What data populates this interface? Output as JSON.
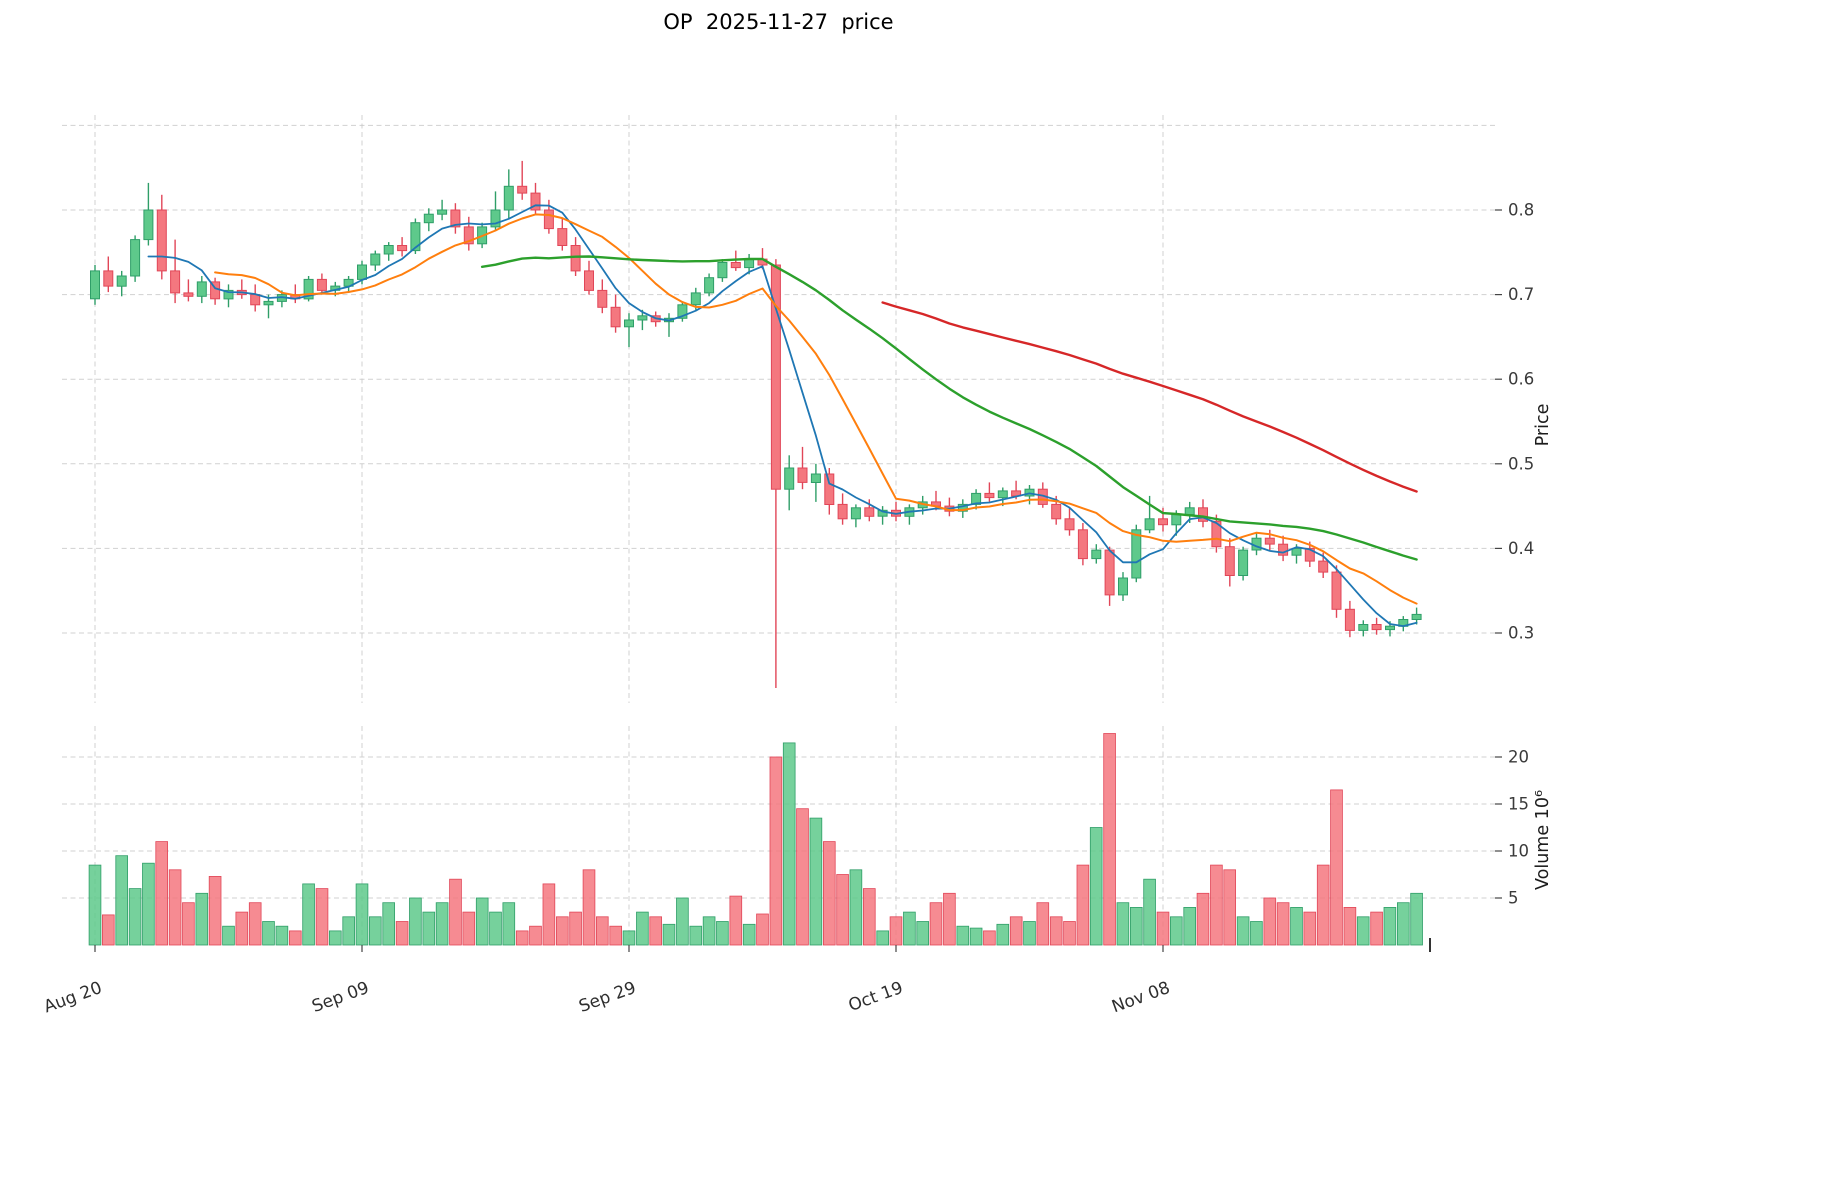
{
  "title": "OP  2025-11-27  price",
  "axes": {
    "price_label": "Price",
    "volume_label": "Volume  10⁶",
    "price_ticks": [
      0.3,
      0.4,
      0.5,
      0.6,
      0.7,
      0.8
    ],
    "price_grid": [
      0.3,
      0.4,
      0.5,
      0.6,
      0.7,
      0.8,
      0.9
    ],
    "volume_ticks": [
      5,
      10,
      15,
      20
    ],
    "x_ticks": [
      {
        "index": 0,
        "label": "Aug 20"
      },
      {
        "index": 20,
        "label": "Sep 09"
      },
      {
        "index": 40,
        "label": "Sep 29"
      },
      {
        "index": 60,
        "label": "Oct 19"
      },
      {
        "index": 80,
        "label": "Nov 08"
      }
    ]
  },
  "colors": {
    "up": "#5ec98b",
    "up_edge": "#2f9e68",
    "down": "#f4777f",
    "down_edge": "#e14658",
    "grid": "#c9c9c9"
  },
  "chart_data": {
    "type": "candlestick+volume",
    "symbol": "OP",
    "as_of_date": "2025-11-27",
    "start_date": "2025-08-20",
    "end_date": "2025-11-27",
    "freq": "daily",
    "price_ylim": [
      0.215,
      0.91
    ],
    "volume_ylim_millions": [
      0,
      23.4
    ],
    "volume_unit": "1e6",
    "x_tick_labels": [
      "Aug 20",
      "Sep 09",
      "Sep 29",
      "Oct 19",
      "Nov 08"
    ],
    "moving_averages": [
      {
        "name": "MA5",
        "window": 5,
        "color": "#1f77b4",
        "width": 1.8
      },
      {
        "name": "MA10",
        "window": 10,
        "color": "#ff7f0e",
        "width": 2.0
      },
      {
        "name": "MA30",
        "window": 30,
        "color": "#2ca02c",
        "width": 2.4
      },
      {
        "name": "MA60",
        "window": 60,
        "color": "#d62728",
        "width": 2.4
      }
    ],
    "open": [
      0.695,
      0.728,
      0.71,
      0.722,
      0.765,
      0.8,
      0.728,
      0.702,
      0.698,
      0.715,
      0.695,
      0.705,
      0.7,
      0.688,
      0.692,
      0.7,
      0.695,
      0.718,
      0.705,
      0.71,
      0.718,
      0.735,
      0.748,
      0.758,
      0.752,
      0.785,
      0.795,
      0.8,
      0.78,
      0.76,
      0.78,
      0.8,
      0.828,
      0.82,
      0.8,
      0.778,
      0.758,
      0.728,
      0.705,
      0.685,
      0.662,
      0.67,
      0.675,
      0.668,
      0.672,
      0.688,
      0.702,
      0.72,
      0.738,
      0.732,
      0.742,
      0.735,
      0.47,
      0.495,
      0.478,
      0.488,
      0.452,
      0.435,
      0.448,
      0.438,
      0.445,
      0.438,
      0.448,
      0.455,
      0.45,
      0.444,
      0.452,
      0.465,
      0.46,
      0.468,
      0.462,
      0.47,
      0.452,
      0.435,
      0.422,
      0.388,
      0.398,
      0.345,
      0.365,
      0.422,
      0.435,
      0.428,
      0.44,
      0.448,
      0.432,
      0.402,
      0.368,
      0.398,
      0.412,
      0.405,
      0.392,
      0.4,
      0.385,
      0.372,
      0.328,
      0.303,
      0.31,
      0.304,
      0.308,
      0.316
    ],
    "high": [
      0.735,
      0.745,
      0.728,
      0.77,
      0.832,
      0.818,
      0.765,
      0.718,
      0.722,
      0.72,
      0.712,
      0.718,
      0.712,
      0.7,
      0.705,
      0.712,
      0.722,
      0.725,
      0.715,
      0.722,
      0.74,
      0.752,
      0.762,
      0.768,
      0.79,
      0.802,
      0.812,
      0.808,
      0.792,
      0.785,
      0.822,
      0.848,
      0.858,
      0.832,
      0.812,
      0.79,
      0.768,
      0.74,
      0.718,
      0.7,
      0.678,
      0.682,
      0.68,
      0.678,
      0.692,
      0.708,
      0.725,
      0.742,
      0.752,
      0.748,
      0.755,
      0.742,
      0.51,
      0.52,
      0.5,
      0.495,
      0.465,
      0.452,
      0.458,
      0.45,
      0.455,
      0.452,
      0.462,
      0.468,
      0.46,
      0.458,
      0.47,
      0.478,
      0.472,
      0.48,
      0.475,
      0.478,
      0.462,
      0.448,
      0.43,
      0.405,
      0.402,
      0.372,
      0.428,
      0.462,
      0.448,
      0.445,
      0.455,
      0.458,
      0.44,
      0.412,
      0.402,
      0.418,
      0.422,
      0.415,
      0.405,
      0.408,
      0.395,
      0.38,
      0.338,
      0.315,
      0.318,
      0.314,
      0.32,
      0.33
    ],
    "low": [
      0.688,
      0.703,
      0.698,
      0.715,
      0.758,
      0.718,
      0.69,
      0.692,
      0.69,
      0.688,
      0.685,
      0.695,
      0.68,
      0.672,
      0.685,
      0.69,
      0.692,
      0.7,
      0.698,
      0.702,
      0.712,
      0.728,
      0.74,
      0.745,
      0.748,
      0.775,
      0.788,
      0.772,
      0.752,
      0.755,
      0.775,
      0.79,
      0.812,
      0.795,
      0.772,
      0.752,
      0.722,
      0.7,
      0.678,
      0.655,
      0.638,
      0.658,
      0.662,
      0.65,
      0.668,
      0.682,
      0.698,
      0.715,
      0.728,
      0.724,
      0.73,
      0.235,
      0.445,
      0.47,
      0.455,
      0.44,
      0.428,
      0.425,
      0.432,
      0.428,
      0.432,
      0.428,
      0.44,
      0.445,
      0.438,
      0.436,
      0.446,
      0.455,
      0.45,
      0.458,
      0.452,
      0.448,
      0.428,
      0.415,
      0.38,
      0.382,
      0.332,
      0.338,
      0.36,
      0.418,
      0.42,
      0.415,
      0.43,
      0.425,
      0.395,
      0.355,
      0.362,
      0.392,
      0.398,
      0.385,
      0.382,
      0.378,
      0.365,
      0.318,
      0.295,
      0.296,
      0.298,
      0.296,
      0.302,
      0.31
    ],
    "close": [
      0.728,
      0.71,
      0.722,
      0.765,
      0.8,
      0.728,
      0.702,
      0.698,
      0.715,
      0.695,
      0.705,
      0.7,
      0.688,
      0.692,
      0.7,
      0.695,
      0.718,
      0.705,
      0.71,
      0.718,
      0.735,
      0.748,
      0.758,
      0.752,
      0.785,
      0.795,
      0.8,
      0.78,
      0.76,
      0.78,
      0.8,
      0.828,
      0.82,
      0.8,
      0.778,
      0.758,
      0.728,
      0.705,
      0.685,
      0.662,
      0.67,
      0.675,
      0.668,
      0.672,
      0.688,
      0.702,
      0.72,
      0.738,
      0.732,
      0.742,
      0.735,
      0.47,
      0.495,
      0.478,
      0.488,
      0.452,
      0.435,
      0.448,
      0.438,
      0.445,
      0.438,
      0.448,
      0.455,
      0.45,
      0.444,
      0.452,
      0.465,
      0.46,
      0.468,
      0.462,
      0.47,
      0.452,
      0.435,
      0.422,
      0.388,
      0.398,
      0.345,
      0.365,
      0.422,
      0.435,
      0.428,
      0.44,
      0.448,
      0.432,
      0.402,
      0.368,
      0.398,
      0.412,
      0.405,
      0.392,
      0.4,
      0.385,
      0.372,
      0.328,
      0.303,
      0.31,
      0.304,
      0.308,
      0.316,
      0.322
    ],
    "volume_millions": [
      8.5,
      3.2,
      9.5,
      6.0,
      8.7,
      11.0,
      8.0,
      4.5,
      5.5,
      7.3,
      2.0,
      3.5,
      4.5,
      2.5,
      2.0,
      1.5,
      6.5,
      6.0,
      1.5,
      3.0,
      6.5,
      3.0,
      4.5,
      2.5,
      5.0,
      3.5,
      4.5,
      7.0,
      3.5,
      5.0,
      3.5,
      4.5,
      1.5,
      2.0,
      6.5,
      3.0,
      3.5,
      8.0,
      3.0,
      2.0,
      1.5,
      3.5,
      3.0,
      2.2,
      5.0,
      2.0,
      3.0,
      2.5,
      5.2,
      2.2,
      3.3,
      20.0,
      21.5,
      14.5,
      13.5,
      11.0,
      7.5,
      8.0,
      6.0,
      1.5,
      3.0,
      3.5,
      2.5,
      4.5,
      5.5,
      2.0,
      1.8,
      1.5,
      2.2,
      3.0,
      2.5,
      4.5,
      3.0,
      2.5,
      8.5,
      12.5,
      22.5,
      4.5,
      4.0,
      7.0,
      3.5,
      3.0,
      4.0,
      5.5,
      8.5,
      8.0,
      3.0,
      2.5,
      5.0,
      4.5,
      4.0,
      3.5,
      8.5,
      16.5,
      4.0,
      3.0,
      3.5,
      4.0,
      4.5,
      5.5
    ]
  }
}
